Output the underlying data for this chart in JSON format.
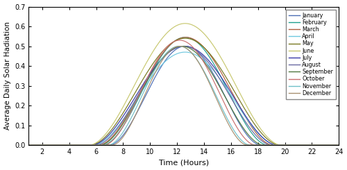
{
  "xlabel": "Time (Hours)",
  "ylabel": "Average Daily Solar Hadiation",
  "xlim": [
    1,
    24
  ],
  "ylim": [
    0,
    0.7
  ],
  "xticks": [
    2,
    4,
    6,
    8,
    10,
    12,
    14,
    16,
    18,
    20,
    22,
    24
  ],
  "yticks": [
    0,
    0.1,
    0.2,
    0.3,
    0.4,
    0.5,
    0.6,
    0.7
  ],
  "months": [
    "January",
    "February",
    "March",
    "April",
    "May",
    "June",
    "July",
    "August",
    "September",
    "October",
    "November",
    "December"
  ],
  "colors": [
    "#5B6BE8",
    "#20B0A0",
    "#C0704A",
    "#7AD8F0",
    "#808020",
    "#C8C860",
    "#3A3AB8",
    "#7878A8",
    "#508840",
    "#D07878",
    "#70C0C8",
    "#B09070"
  ],
  "peak_hours": [
    13.0,
    13.0,
    13.0,
    13.0,
    13.0,
    13.0,
    13.0,
    13.0,
    13.0,
    13.0,
    13.0,
    13.0
  ],
  "peak_values": [
    0.5,
    0.545,
    0.545,
    0.47,
    0.54,
    0.615,
    0.5,
    0.5,
    0.5,
    0.53,
    0.5,
    0.5
  ],
  "sunrise_hours": [
    7.0,
    6.5,
    6.2,
    5.8,
    5.6,
    5.5,
    5.7,
    6.0,
    6.3,
    6.6,
    6.9,
    7.2
  ],
  "sunset_hours": [
    18.2,
    18.7,
    19.1,
    19.4,
    19.6,
    19.7,
    19.4,
    19.0,
    18.4,
    17.8,
    17.4,
    17.2
  ],
  "sigma_factor": 2.5
}
